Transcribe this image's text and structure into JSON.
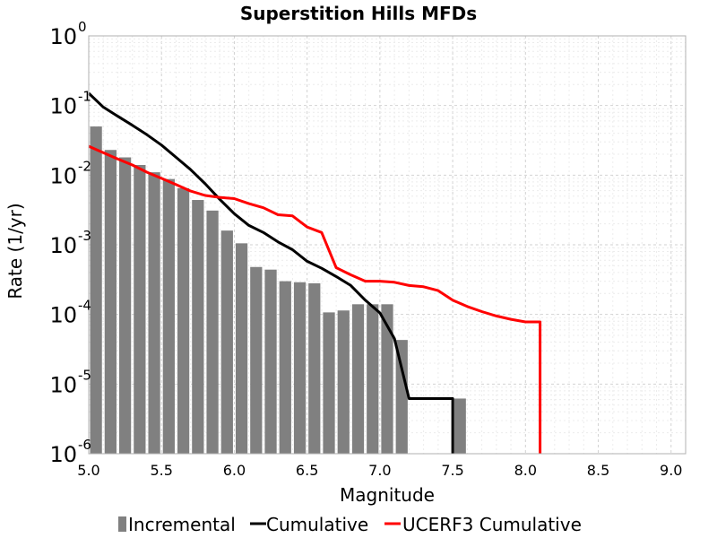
{
  "chart_data": {
    "type": "bar+line",
    "title": "Superstition Hills MFDs",
    "xlabel": "Magnitude",
    "ylabel": "Rate (1/yr)",
    "xlim": [
      5.0,
      9.1
    ],
    "ylim": [
      1e-06,
      1
    ],
    "yscale": "log",
    "grid": true,
    "legend_position": "bottom",
    "x_ticks": [
      "5.0",
      "5.5",
      "6.0",
      "6.5",
      "7.0",
      "7.5",
      "8.0",
      "8.5",
      "9.0"
    ],
    "y_ticks": [
      {
        "base": "10",
        "exp": "0",
        "value": 1
      },
      {
        "base": "10",
        "exp": "-1",
        "value": 0.1
      },
      {
        "base": "10",
        "exp": "-2",
        "value": 0.01
      },
      {
        "base": "10",
        "exp": "-3",
        "value": 0.001
      },
      {
        "base": "10",
        "exp": "-4",
        "value": 0.0001
      },
      {
        "base": "10",
        "exp": "-5",
        "value": 1e-05
      },
      {
        "base": "10",
        "exp": "-6",
        "value": 1e-06
      }
    ],
    "series": [
      {
        "name": "Incremental",
        "type": "bar",
        "color": "#808080",
        "x": [
          5.05,
          5.15,
          5.25,
          5.35,
          5.45,
          5.55,
          5.65,
          5.75,
          5.85,
          5.95,
          6.05,
          6.15,
          6.25,
          6.35,
          6.45,
          6.55,
          6.65,
          6.75,
          6.85,
          6.95,
          7.05,
          7.15,
          7.25,
          7.35,
          7.45,
          7.55
        ],
        "values": [
          0.05,
          0.023,
          0.018,
          0.014,
          0.011,
          0.0088,
          0.0065,
          0.0044,
          0.0031,
          0.0016,
          0.00105,
          0.00048,
          0.00044,
          0.0003,
          0.00029,
          0.00028,
          0.000107,
          0.000114,
          0.00014,
          0.00014,
          0.00014,
          4.3e-05,
          0,
          0,
          0,
          6.2e-06
        ]
      },
      {
        "name": "Cumulative",
        "type": "line",
        "color": "#000000",
        "x": [
          5.0,
          5.1,
          5.2,
          5.3,
          5.4,
          5.5,
          5.6,
          5.7,
          5.8,
          5.9,
          6.0,
          6.1,
          6.2,
          6.3,
          6.4,
          6.5,
          6.6,
          6.7,
          6.8,
          6.9,
          7.0,
          7.1,
          7.2,
          7.3,
          7.4,
          7.5,
          7.5
        ],
        "values": [
          0.15,
          0.095,
          0.07,
          0.052,
          0.038,
          0.027,
          0.018,
          0.012,
          0.0075,
          0.0045,
          0.0028,
          0.0019,
          0.0015,
          0.0011,
          0.00085,
          0.00058,
          0.00046,
          0.00035,
          0.00026,
          0.00016,
          0.000105,
          4.5e-05,
          6.2e-06,
          6.2e-06,
          6.2e-06,
          6.2e-06,
          1e-06
        ]
      },
      {
        "name": "UCERF3 Cumulative",
        "type": "line",
        "color": "#ff0000",
        "x": [
          5.0,
          5.1,
          5.2,
          5.3,
          5.4,
          5.5,
          5.6,
          5.7,
          5.8,
          5.9,
          6.0,
          6.1,
          6.2,
          6.3,
          6.4,
          6.5,
          6.6,
          6.7,
          6.8,
          6.9,
          7.0,
          7.1,
          7.2,
          7.3,
          7.4,
          7.5,
          7.6,
          7.7,
          7.8,
          7.9,
          8.0,
          8.1,
          8.1
        ],
        "values": [
          0.026,
          0.021,
          0.017,
          0.014,
          0.011,
          0.009,
          0.0073,
          0.0059,
          0.0051,
          0.0048,
          0.0046,
          0.0039,
          0.0034,
          0.0027,
          0.0026,
          0.0018,
          0.0015,
          0.00047,
          0.00037,
          0.0003,
          0.0003,
          0.00029,
          0.00026,
          0.00025,
          0.00022,
          0.00016,
          0.00013,
          0.00011,
          9.5e-05,
          8.5e-05,
          7.8e-05,
          7.8e-05,
          1e-06
        ]
      }
    ]
  }
}
